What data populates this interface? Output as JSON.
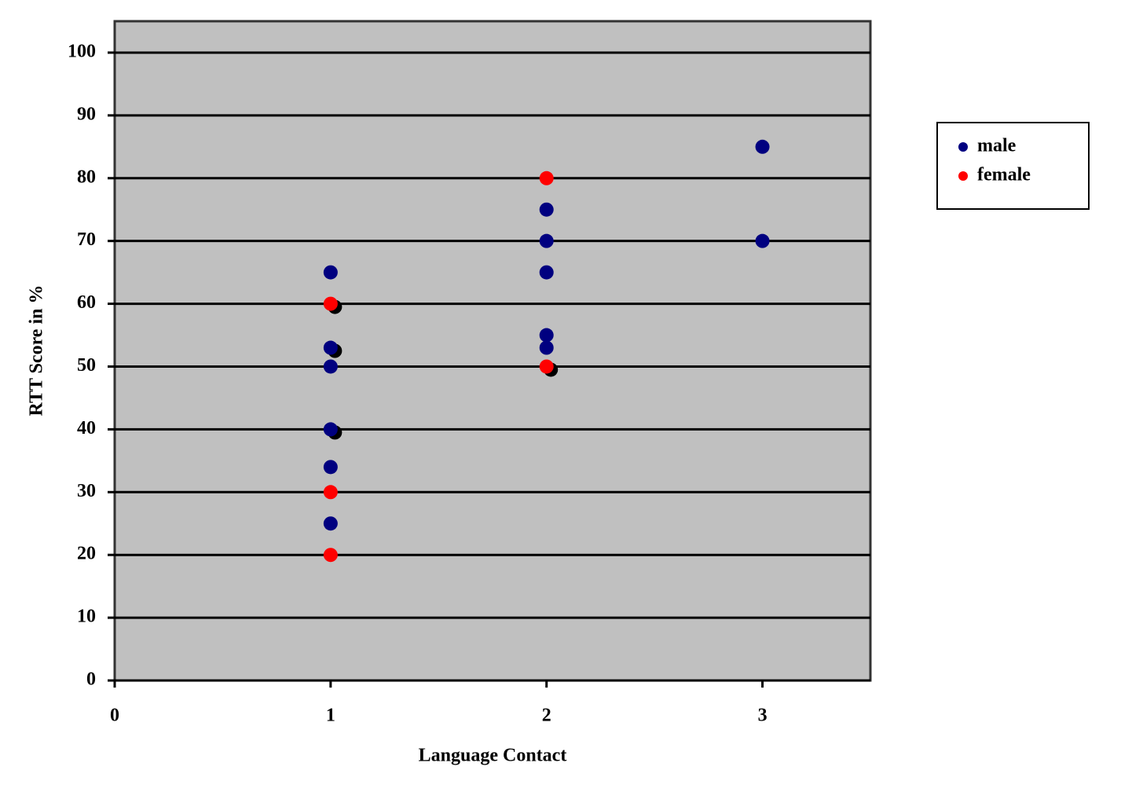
{
  "chart_data": {
    "type": "scatter",
    "x_label": "Language Contact",
    "y_label": "RTT Score in %",
    "xlim": [
      0,
      3.5
    ],
    "xticks": [
      0,
      1,
      2,
      3
    ],
    "ylim": [
      0,
      105
    ],
    "yticks": [
      0,
      10,
      20,
      30,
      40,
      50,
      60,
      70,
      80,
      90,
      100
    ],
    "grid": true,
    "legend": "right",
    "series": [
      {
        "color": "#000000",
        "x": [
          1.02,
          1.02,
          1.02,
          2.02
        ],
        "values": [
          59.5,
          52.5,
          39.5,
          49.5
        ]
      },
      {
        "name": "male",
        "color": "#000080",
        "x": [
          1,
          1,
          1,
          1,
          1,
          1,
          2,
          2,
          2,
          2,
          2,
          3,
          3
        ],
        "values": [
          65,
          53,
          50,
          40,
          34,
          25,
          75,
          70,
          65,
          55,
          53,
          85,
          70
        ]
      },
      {
        "name": "female",
        "color": "#ff0000",
        "x": [
          1,
          1,
          1,
          2,
          2
        ],
        "values": [
          60,
          30,
          20,
          80,
          50
        ]
      }
    ]
  }
}
